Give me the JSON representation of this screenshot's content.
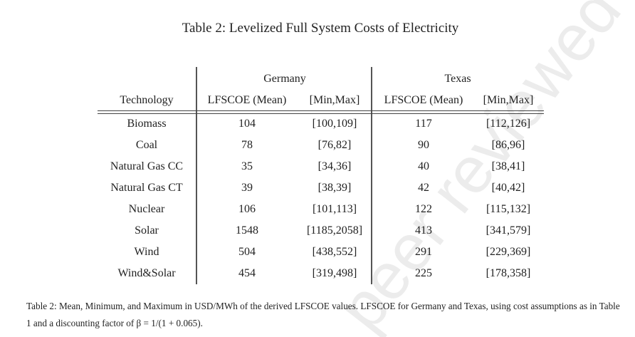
{
  "title": "Table 2: Levelized Full System Costs of Electricity",
  "groups": {
    "germany": "Germany",
    "texas": "Texas"
  },
  "headers": [
    "Technology",
    "LFSCOE (Mean)",
    "[Min,Max]",
    "LFSCOE (Mean)",
    "[Min,Max]"
  ],
  "rows": [
    [
      "Biomass",
      "104",
      "[100,109]",
      "117",
      "[112,126]"
    ],
    [
      "Coal",
      "78",
      "[76,82]",
      "90",
      "[86,96]"
    ],
    [
      "Natural Gas CC",
      "35",
      "[34,36]",
      "40",
      "[38,41]"
    ],
    [
      "Natural Gas CT",
      "39",
      "[38,39]",
      "42",
      "[40,42]"
    ],
    [
      "Nuclear",
      "106",
      "[101,113]",
      "122",
      "[115,132]"
    ],
    [
      "Solar",
      "1548",
      "[1185,2058]",
      "413",
      "[341,579]"
    ],
    [
      "Wind",
      "504",
      "[438,552]",
      "291",
      "[229,369]"
    ],
    [
      "Wind&Solar",
      "454",
      "[319,498]",
      "225",
      "[178,358]"
    ]
  ],
  "caption": "Table 2: Mean, Minimum, and Maximum in USD/MWh of the derived LFSCOE values. LFSCOE for Germany and Texas, using cost assumptions as in Table 1 and a discounting factor of β = 1/(1 + 0.065).",
  "watermark": "peer reviewed"
}
